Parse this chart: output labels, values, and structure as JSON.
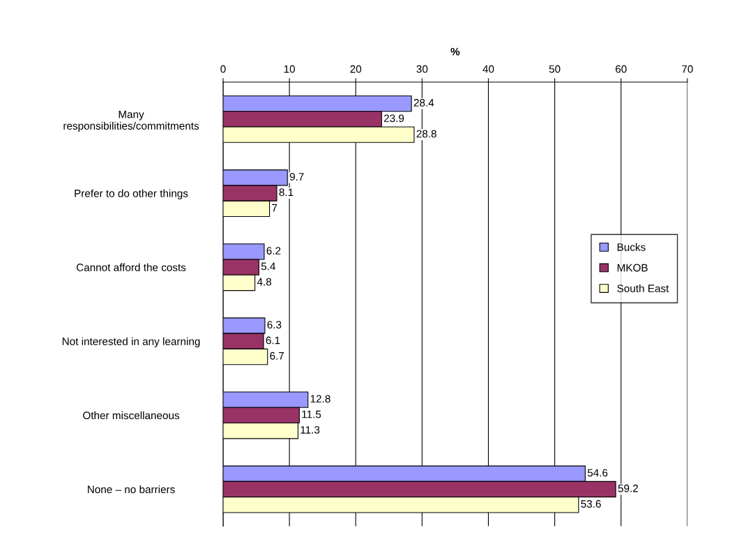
{
  "chart_data": {
    "type": "bar",
    "orientation": "horizontal",
    "xlabel": "%",
    "categories": [
      "Many\nresponsibilities/commitments",
      "Prefer to do other things",
      "Cannot afford the costs",
      "Not interested in any learning",
      "Other miscellaneous",
      "None – no barriers"
    ],
    "series": [
      {
        "name": "Bucks",
        "color": "#9999ff",
        "values": [
          28.4,
          9.7,
          6.2,
          6.3,
          12.8,
          54.6
        ]
      },
      {
        "name": "MKOB",
        "color": "#993366",
        "values": [
          23.9,
          8.1,
          5.4,
          6.1,
          11.5,
          59.2
        ]
      },
      {
        "name": "South East",
        "color": "#ffffcc",
        "values": [
          28.8,
          7,
          4.8,
          6.7,
          11.3,
          53.6
        ]
      }
    ],
    "xlim": [
      0,
      70
    ],
    "xticks": [
      0,
      10,
      20,
      30,
      40,
      50,
      60,
      70
    ],
    "grid": "x",
    "legend": "right",
    "data_labels": true
  }
}
